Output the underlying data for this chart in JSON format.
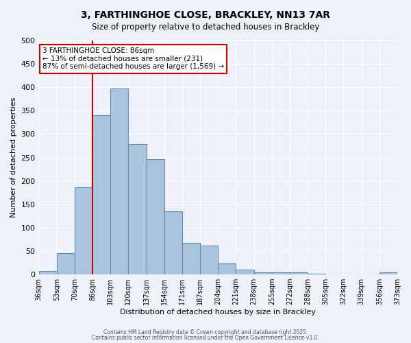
{
  "title": "3, FARTHINGHOE CLOSE, BRACKLEY, NN13 7AR",
  "subtitle": "Size of property relative to detached houses in Brackley",
  "xlabel": "Distribution of detached houses by size in Brackley",
  "ylabel": "Number of detached properties",
  "bin_labels": [
    "36sqm",
    "53sqm",
    "70sqm",
    "86sqm",
    "103sqm",
    "120sqm",
    "137sqm",
    "154sqm",
    "171sqm",
    "187sqm",
    "204sqm",
    "221sqm",
    "238sqm",
    "255sqm",
    "272sqm",
    "288sqm",
    "305sqm",
    "322sqm",
    "339sqm",
    "356sqm",
    "373sqm"
  ],
  "bar_values": [
    8,
    46,
    186,
    340,
    398,
    278,
    246,
    135,
    68,
    62,
    24,
    10,
    5,
    5,
    5,
    2,
    0,
    0,
    0,
    4
  ],
  "bar_color": "#aac4de",
  "bar_edge_color": "#5f8db5",
  "bar_edge_width": 0.8,
  "property_line_x": 3,
  "property_line_color": "#cc0000",
  "ylim": [
    0,
    500
  ],
  "yticks": [
    0,
    50,
    100,
    150,
    200,
    250,
    300,
    350,
    400,
    450,
    500
  ],
  "annotation_text": "3 FARTHINGHOE CLOSE: 86sqm\n← 13% of detached houses are smaller (231)\n87% of semi-detached houses are larger (1,569) →",
  "annotation_box_color": "#ffffff",
  "annotation_box_edge_color": "#cc0000",
  "background_color": "#eef2f8",
  "grid_color": "#ffffff",
  "footer_line1": "Contains HM Land Registry data © Crown copyright and database right 2025.",
  "footer_line2": "Contains public sector information licensed under the Open Government Licence v3.0."
}
